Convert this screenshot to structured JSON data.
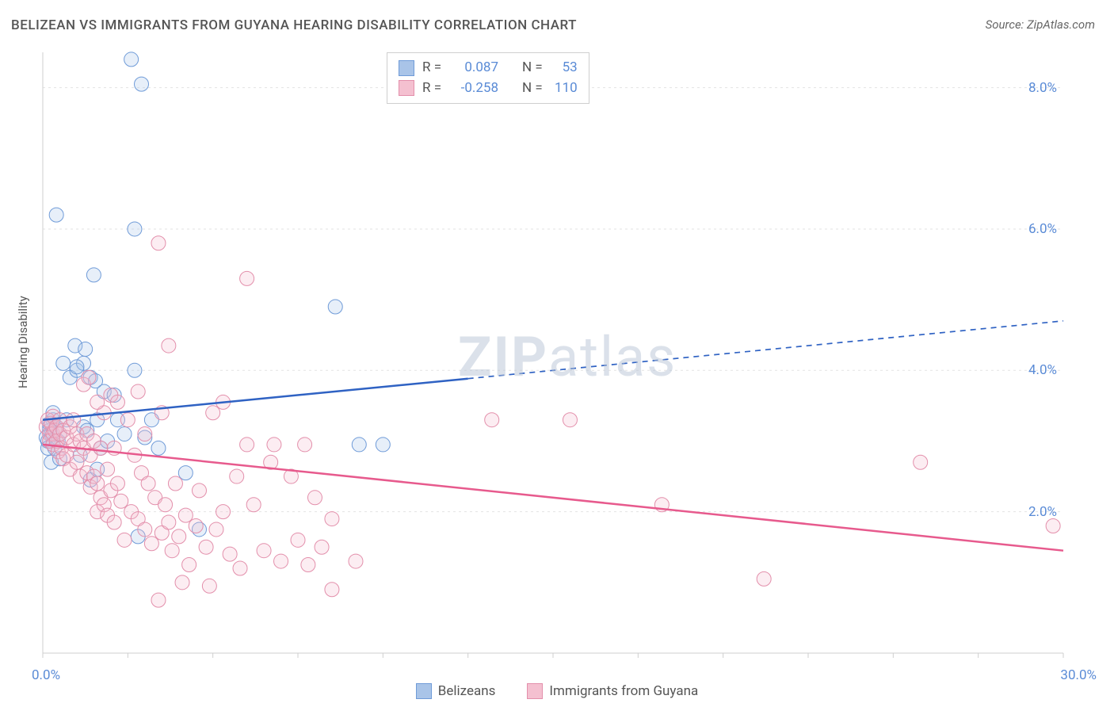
{
  "title": "BELIZEAN VS IMMIGRANTS FROM GUYANA HEARING DISABILITY CORRELATION CHART",
  "source": "Source: ZipAtlas.com",
  "y_axis_label": "Hearing Disability",
  "watermark_bold": "ZIP",
  "watermark_rest": "atlas",
  "chart": {
    "type": "scatter",
    "background_color": "#ffffff",
    "grid_color": "#e3e3e3",
    "axis_color": "#cfcfcf",
    "tick_color": "#cfcfcf",
    "xlim": [
      0,
      30
    ],
    "ylim": [
      0,
      8.5
    ],
    "x_ticks": [
      0,
      2.5,
      5,
      7.5,
      10,
      12.5,
      15,
      17.5,
      20,
      22.5,
      25,
      27.5,
      30
    ],
    "x_tick_labels_shown": {
      "0": "0.0%",
      "30": "30.0%"
    },
    "y_grid_lines": [
      2,
      4,
      6,
      8
    ],
    "y_tick_labels": {
      "2": "2.0%",
      "4": "4.0%",
      "6": "6.0%",
      "8": "8.0%"
    },
    "x_label_color": "#5a8bd6",
    "y_label_color": "#5a8bd6",
    "font_size_ticks": 17,
    "watermark_color": "#b8c5d6",
    "marker_radius": 9,
    "marker_stroke_width": 1,
    "marker_fill_opacity": 0.28,
    "line_width": 2.5,
    "dash_pattern": "7,6",
    "series": [
      {
        "name": "Belizeans",
        "legend_label": "Belizeans",
        "color_stroke": "#6f9bd8",
        "color_fill": "#a9c4e8",
        "line_color": "#2f62c3",
        "R_label": "R =",
        "R_value": "0.087",
        "N_label": "N =",
        "N_value": "53",
        "regression": {
          "x1": 0,
          "y1": 3.3,
          "x2": 30,
          "y2": 4.7,
          "solid_x_end": 12.5
        },
        "points": [
          [
            0.2,
            3.2
          ],
          [
            0.15,
            3.0
          ],
          [
            0.25,
            3.1
          ],
          [
            0.3,
            3.3
          ],
          [
            0.2,
            3.15
          ],
          [
            0.3,
            2.95
          ],
          [
            0.4,
            3.2
          ],
          [
            0.1,
            3.05
          ],
          [
            0.35,
            2.9
          ],
          [
            0.45,
            3.0
          ],
          [
            0.2,
            3.25
          ],
          [
            0.3,
            3.4
          ],
          [
            0.25,
            2.7
          ],
          [
            0.5,
            3.1
          ],
          [
            0.15,
            2.9
          ],
          [
            0.6,
            4.1
          ],
          [
            0.8,
            3.9
          ],
          [
            1.0,
            4.0
          ],
          [
            1.2,
            4.1
          ],
          [
            1.4,
            3.9
          ],
          [
            2.7,
            4.0
          ],
          [
            0.4,
            6.2
          ],
          [
            2.6,
            8.4
          ],
          [
            2.9,
            8.05
          ],
          [
            2.7,
            6.0
          ],
          [
            1.5,
            5.35
          ],
          [
            0.7,
            3.3
          ],
          [
            1.2,
            3.2
          ],
          [
            1.3,
            3.15
          ],
          [
            1.6,
            3.3
          ],
          [
            1.7,
            2.9
          ],
          [
            1.9,
            3.0
          ],
          [
            2.2,
            3.3
          ],
          [
            2.4,
            3.1
          ],
          [
            0.5,
            2.75
          ],
          [
            1.1,
            2.8
          ],
          [
            1.4,
            2.45
          ],
          [
            1.6,
            2.6
          ],
          [
            2.8,
            1.65
          ],
          [
            8.6,
            4.9
          ],
          [
            10.0,
            2.95
          ],
          [
            9.3,
            2.95
          ],
          [
            0.95,
            4.35
          ],
          [
            1.25,
            4.3
          ],
          [
            1.0,
            4.05
          ],
          [
            1.55,
            3.85
          ],
          [
            1.8,
            3.7
          ],
          [
            2.1,
            3.65
          ],
          [
            3.2,
            3.3
          ],
          [
            3.4,
            2.9
          ],
          [
            3.0,
            3.05
          ],
          [
            4.2,
            2.55
          ],
          [
            4.6,
            1.75
          ]
        ]
      },
      {
        "name": "Immigrants from Guyana",
        "legend_label": "Immigrants from Guyana",
        "color_stroke": "#e38fab",
        "color_fill": "#f4c0d0",
        "line_color": "#e75a8d",
        "R_label": "R =",
        "R_value": "-0.258",
        "N_label": "N =",
        "N_value": "110",
        "regression": {
          "x1": 0,
          "y1": 2.95,
          "x2": 30,
          "y2": 1.45,
          "solid_x_end": 30
        },
        "points": [
          [
            0.1,
            3.2
          ],
          [
            0.15,
            3.3
          ],
          [
            0.2,
            3.1
          ],
          [
            0.2,
            3.0
          ],
          [
            0.25,
            3.25
          ],
          [
            0.3,
            3.1
          ],
          [
            0.3,
            2.95
          ],
          [
            0.35,
            3.15
          ],
          [
            0.3,
            3.35
          ],
          [
            0.4,
            3.0
          ],
          [
            0.4,
            3.2
          ],
          [
            0.45,
            2.85
          ],
          [
            0.5,
            3.1
          ],
          [
            0.5,
            3.3
          ],
          [
            0.55,
            2.9
          ],
          [
            0.6,
            3.15
          ],
          [
            0.6,
            2.75
          ],
          [
            0.7,
            3.05
          ],
          [
            0.7,
            2.8
          ],
          [
            0.8,
            3.2
          ],
          [
            0.8,
            2.6
          ],
          [
            0.9,
            2.95
          ],
          [
            0.9,
            3.3
          ],
          [
            1.0,
            2.7
          ],
          [
            1.0,
            3.1
          ],
          [
            1.1,
            2.5
          ],
          [
            1.1,
            3.0
          ],
          [
            1.2,
            2.9
          ],
          [
            1.3,
            2.55
          ],
          [
            1.3,
            3.1
          ],
          [
            1.4,
            2.35
          ],
          [
            1.4,
            2.8
          ],
          [
            1.5,
            2.5
          ],
          [
            1.5,
            3.0
          ],
          [
            1.6,
            2.0
          ],
          [
            1.6,
            2.4
          ],
          [
            1.7,
            2.2
          ],
          [
            1.7,
            2.9
          ],
          [
            1.8,
            2.1
          ],
          [
            1.8,
            3.4
          ],
          [
            1.9,
            1.95
          ],
          [
            1.9,
            2.6
          ],
          [
            2.0,
            2.3
          ],
          [
            2.1,
            1.85
          ],
          [
            2.1,
            2.9
          ],
          [
            2.2,
            2.4
          ],
          [
            2.3,
            2.15
          ],
          [
            2.4,
            1.6
          ],
          [
            2.5,
            3.3
          ],
          [
            2.6,
            2.0
          ],
          [
            2.7,
            2.8
          ],
          [
            2.8,
            1.9
          ],
          [
            2.9,
            2.55
          ],
          [
            3.0,
            1.75
          ],
          [
            3.0,
            3.1
          ],
          [
            3.1,
            2.4
          ],
          [
            3.2,
            1.55
          ],
          [
            3.3,
            2.2
          ],
          [
            3.4,
            0.75
          ],
          [
            3.5,
            1.7
          ],
          [
            3.5,
            3.4
          ],
          [
            3.6,
            2.1
          ],
          [
            3.7,
            1.85
          ],
          [
            3.8,
            1.45
          ],
          [
            3.9,
            2.4
          ],
          [
            4.0,
            1.65
          ],
          [
            4.1,
            1.0
          ],
          [
            4.2,
            1.95
          ],
          [
            4.3,
            1.25
          ],
          [
            4.5,
            1.8
          ],
          [
            4.6,
            2.3
          ],
          [
            4.8,
            1.5
          ],
          [
            4.9,
            0.95
          ],
          [
            5.0,
            3.4
          ],
          [
            5.1,
            1.75
          ],
          [
            5.3,
            2.0
          ],
          [
            5.3,
            3.55
          ],
          [
            5.5,
            1.4
          ],
          [
            5.7,
            2.5
          ],
          [
            5.8,
            1.2
          ],
          [
            6.0,
            2.95
          ],
          [
            6.2,
            2.1
          ],
          [
            6.5,
            1.45
          ],
          [
            6.7,
            2.7
          ],
          [
            6.8,
            2.95
          ],
          [
            7.0,
            1.3
          ],
          [
            7.3,
            2.5
          ],
          [
            7.5,
            1.6
          ],
          [
            7.7,
            2.95
          ],
          [
            7.8,
            1.25
          ],
          [
            8.0,
            2.2
          ],
          [
            8.2,
            1.5
          ],
          [
            8.5,
            1.9
          ],
          [
            8.5,
            0.9
          ],
          [
            9.2,
            1.3
          ],
          [
            3.4,
            5.8
          ],
          [
            3.7,
            4.35
          ],
          [
            6.0,
            5.3
          ],
          [
            1.2,
            3.8
          ],
          [
            1.35,
            3.9
          ],
          [
            1.6,
            3.55
          ],
          [
            13.2,
            3.3
          ],
          [
            15.5,
            3.3
          ],
          [
            18.2,
            2.1
          ],
          [
            21.2,
            1.05
          ],
          [
            25.8,
            2.7
          ],
          [
            29.7,
            1.8
          ],
          [
            2.0,
            3.65
          ],
          [
            2.2,
            3.55
          ],
          [
            2.8,
            3.7
          ]
        ]
      }
    ]
  },
  "bottom_legend": [
    {
      "swatch_fill": "#a9c4e8",
      "swatch_stroke": "#6f9bd8",
      "label": "Belizeans"
    },
    {
      "swatch_fill": "#f4c0d0",
      "swatch_stroke": "#e38fab",
      "label": "Immigrants from Guyana"
    }
  ]
}
